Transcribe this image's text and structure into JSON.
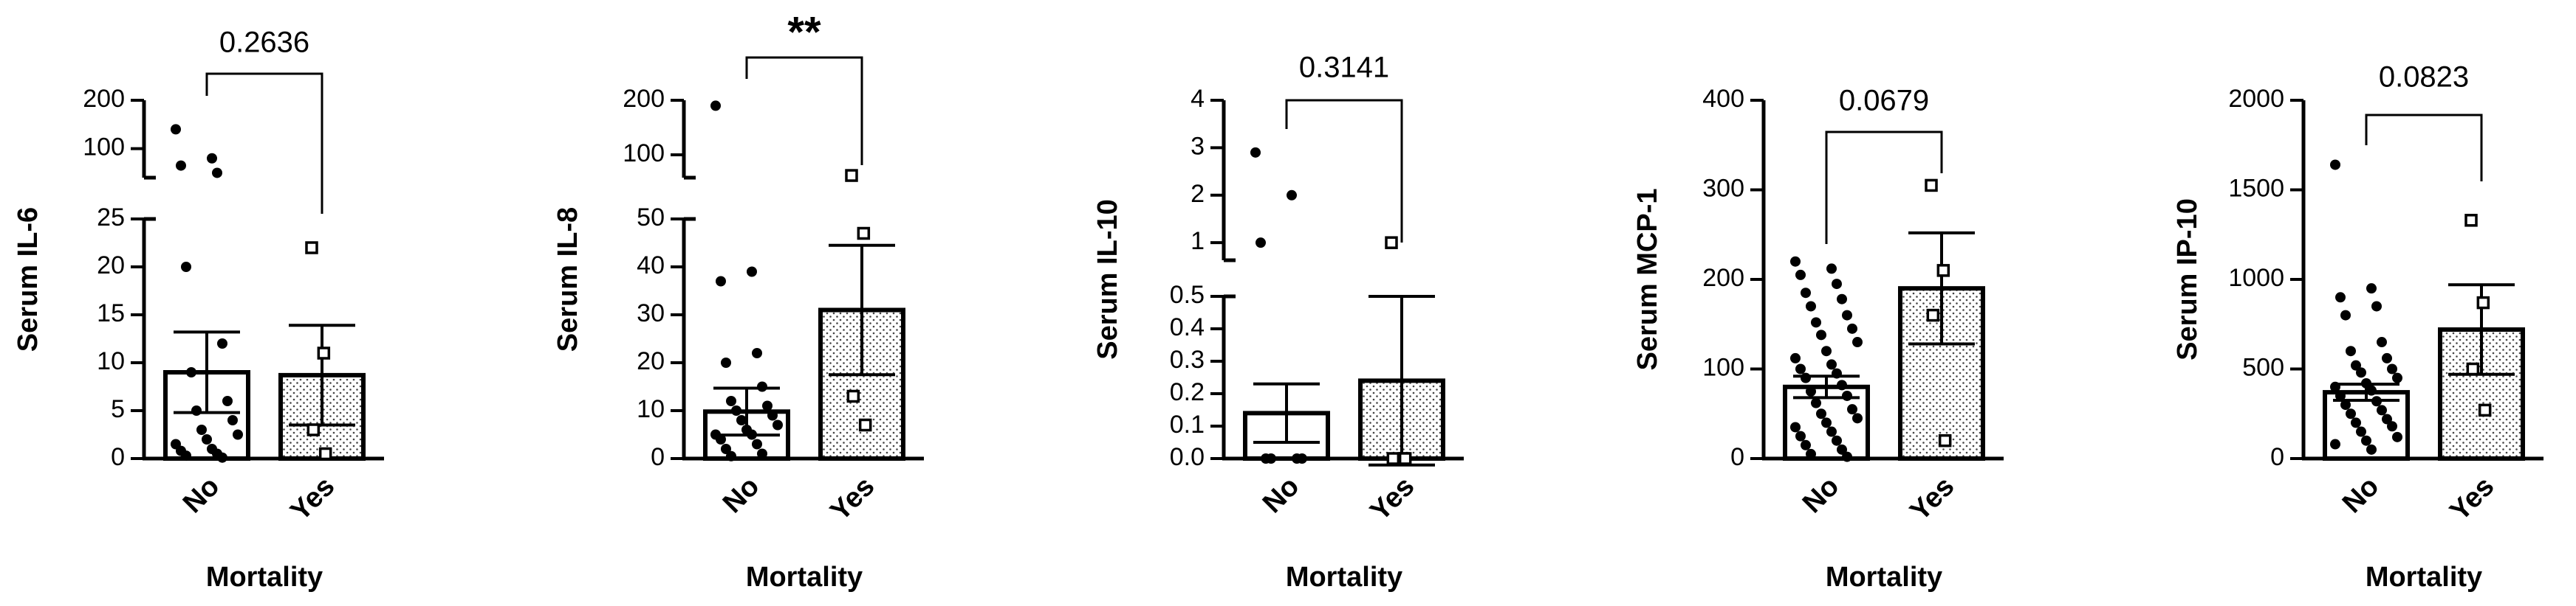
{
  "chart_data": [
    {
      "type": "bar",
      "y_label": "Serum IL-6",
      "x_label": "Mortality",
      "categories": [
        "No",
        "Yes"
      ],
      "values": [
        9.0,
        8.7
      ],
      "errors": [
        4.2,
        5.2
      ],
      "points": [
        [
          140,
          80,
          65,
          50,
          20,
          12,
          9,
          6,
          5,
          4,
          3,
          2.5,
          2,
          1.5,
          1,
          0.8,
          0.5,
          0.3,
          0.1
        ],
        [
          22,
          11,
          3,
          0.5
        ]
      ],
      "annotation": "0.2636",
      "ylim": [
        0,
        25
      ],
      "yticks": [
        0,
        5,
        10,
        15,
        20,
        25
      ],
      "ylim_upper": [
        40,
        200
      ],
      "yticks_upper": [
        100,
        200
      ]
    },
    {
      "type": "bar",
      "y_label": "Serum IL-8",
      "x_label": "Mortality",
      "categories": [
        "No",
        "Yes"
      ],
      "values": [
        9.8,
        31
      ],
      "errors": [
        4.9,
        13.5
      ],
      "points": [
        [
          190,
          39,
          37,
          22,
          20,
          15,
          12,
          11,
          10,
          9,
          8,
          7,
          6,
          5,
          5,
          4,
          3,
          2,
          1,
          0.5
        ],
        [
          62,
          47,
          13,
          7
        ]
      ],
      "annotation": "**",
      "ylim": [
        0,
        50
      ],
      "yticks": [
        0,
        10,
        20,
        30,
        40,
        50
      ],
      "ylim_upper": [
        58,
        200
      ],
      "yticks_upper": [
        100,
        200
      ]
    },
    {
      "type": "bar",
      "y_label": "Serum IL-10",
      "x_label": "Mortality",
      "categories": [
        "No",
        "Yes"
      ],
      "values": [
        0.14,
        0.24
      ],
      "errors": [
        0.09,
        0.26
      ],
      "points": [
        [
          2.9,
          2.0,
          1.0,
          0,
          0,
          0,
          0
        ],
        [
          1.0,
          0,
          0,
          0
        ]
      ],
      "annotation": "0.3141",
      "ylim": [
        0,
        0.5
      ],
      "yticks": [
        {
          "value": 0,
          "label": "0.0"
        },
        0.1,
        0.2,
        0.3,
        0.4,
        0.5
      ],
      "ylim_upper": [
        0.63,
        4
      ],
      "yticks_upper": [
        1,
        2,
        3,
        4
      ]
    },
    {
      "type": "bar",
      "y_label": "Serum MCP-1",
      "x_label": "Mortality",
      "categories": [
        "No",
        "Yes"
      ],
      "values": [
        80,
        190
      ],
      "errors": [
        12,
        62
      ],
      "points": [
        [
          220,
          212,
          205,
          195,
          185,
          178,
          170,
          160,
          152,
          145,
          138,
          130,
          120,
          112,
          105,
          100,
          95,
          90,
          82,
          75,
          70,
          62,
          55,
          50,
          45,
          40,
          35,
          30,
          25,
          20,
          15,
          10,
          5,
          2
        ],
        [
          305,
          210,
          160,
          20
        ]
      ],
      "annotation": "0.0679",
      "ylim": [
        0,
        400
      ],
      "yticks": [
        0,
        100,
        200,
        300,
        400
      ]
    },
    {
      "type": "bar",
      "y_label": "Serum IP-10",
      "x_label": "Mortality",
      "categories": [
        "No",
        "Yes"
      ],
      "values": [
        370,
        720
      ],
      "errors": [
        45,
        250
      ],
      "points": [
        [
          1640,
          950,
          900,
          850,
          800,
          650,
          600,
          560,
          520,
          500,
          480,
          450,
          420,
          400,
          380,
          350,
          320,
          300,
          270,
          250,
          220,
          200,
          180,
          150,
          120,
          100,
          80,
          50
        ],
        [
          1330,
          870,
          500,
          270
        ]
      ],
      "annotation": "0.0823",
      "ylim": [
        0,
        2000
      ],
      "yticks": [
        0,
        500,
        1000,
        1500,
        2000
      ]
    }
  ]
}
